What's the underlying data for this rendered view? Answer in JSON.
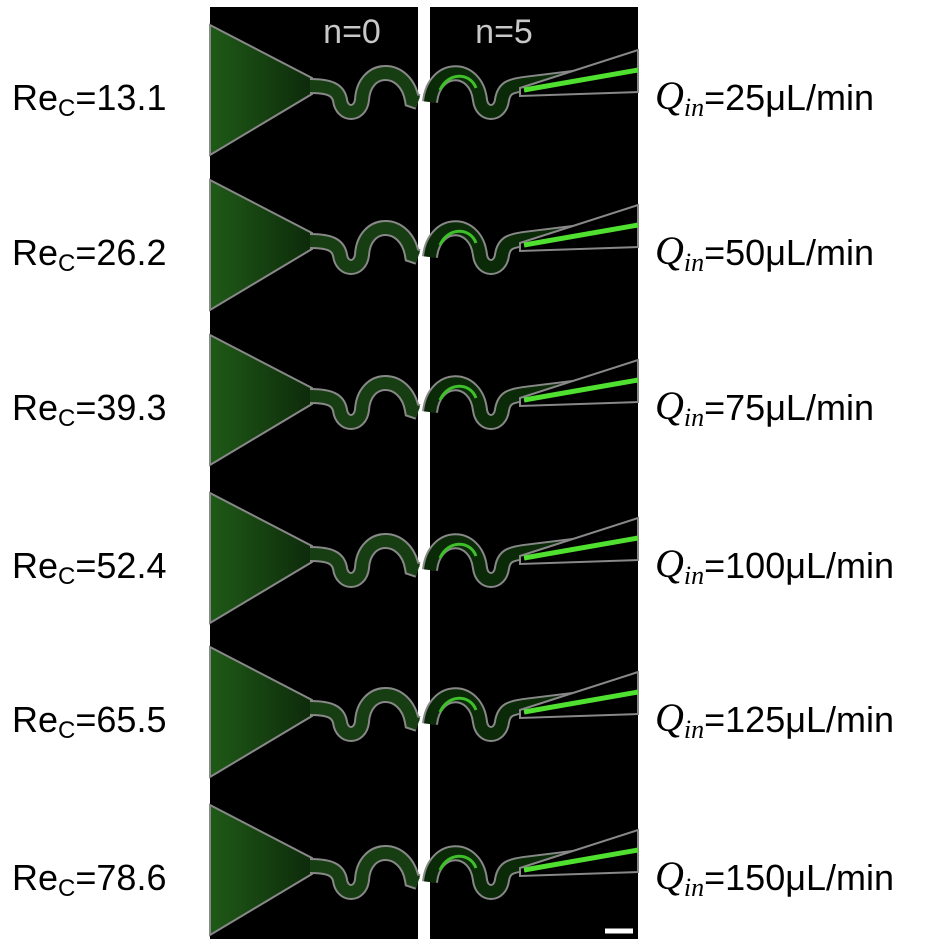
{
  "columns": [
    "n=0",
    "n=5"
  ],
  "rows": [
    {
      "re": "Re",
      "re_sub": "C",
      "re_value": "=13.1",
      "q": "Q",
      "q_sub": "in",
      "q_value": "=25μL/min"
    },
    {
      "re": "Re",
      "re_sub": "C",
      "re_value": "=26.2",
      "q": "Q",
      "q_sub": "in",
      "q_value": "=50μL/min"
    },
    {
      "re": "Re",
      "re_sub": "C",
      "re_value": "=39.3",
      "q": "Q",
      "q_sub": "in",
      "q_value": "=75μL/min"
    },
    {
      "re": "Re",
      "re_sub": "C",
      "re_value": "=52.4",
      "q": "Q",
      "q_sub": "in",
      "q_value": "=100μL/min"
    },
    {
      "re": "Re",
      "re_sub": "C",
      "re_value": "=65.5",
      "q": "Q",
      "q_sub": "in",
      "q_value": "=125μL/min"
    },
    {
      "re": "Re",
      "re_sub": "C",
      "re_value": "=78.6",
      "q": "Q",
      "q_sub": "in",
      "q_value": "=150μL/min"
    }
  ]
}
